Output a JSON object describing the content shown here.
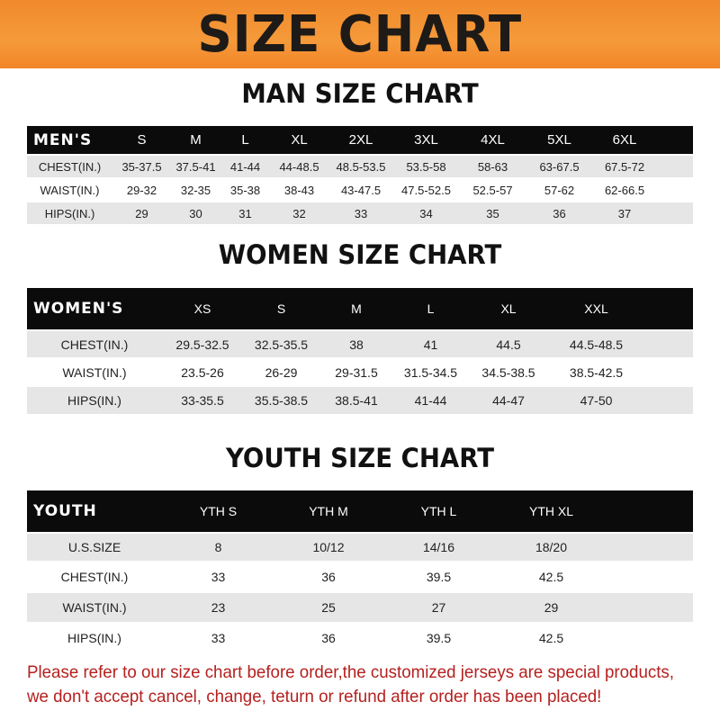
{
  "title": "SIZE CHART",
  "men": {
    "heading": "MAN SIZE CHART",
    "label": "MEN'S",
    "sizes": [
      "S",
      "M",
      "L",
      "XL",
      "2XL",
      "3XL",
      "4XL",
      "5XL",
      "6XL"
    ],
    "rows": [
      {
        "label": "CHEST(IN.)",
        "values": [
          "35-37.5",
          "37.5-41",
          "41-44",
          "44-48.5",
          "48.5-53.5",
          "53.5-58",
          "58-63",
          "63-67.5",
          "67.5-72"
        ]
      },
      {
        "label": "WAIST(IN.)",
        "values": [
          "29-32",
          "32-35",
          "35-38",
          "38-43",
          "43-47.5",
          "47.5-52.5",
          "52.5-57",
          "57-62",
          "62-66.5"
        ]
      },
      {
        "label": "HIPS(IN.)",
        "values": [
          "29",
          "30",
          "31",
          "32",
          "33",
          "34",
          "35",
          "36",
          "37"
        ]
      }
    ]
  },
  "women": {
    "heading": "WOMEN SIZE CHART",
    "label": "WOMEN'S",
    "sizes": [
      "XS",
      "S",
      "M",
      "L",
      "XL",
      "XXL"
    ],
    "rows": [
      {
        "label": "CHEST(IN.)",
        "values": [
          "29.5-32.5",
          "32.5-35.5",
          "38",
          "41",
          "44.5",
          "44.5-48.5"
        ]
      },
      {
        "label": "WAIST(IN.)",
        "values": [
          "23.5-26",
          "26-29",
          "29-31.5",
          "31.5-34.5",
          "34.5-38.5",
          "38.5-42.5"
        ]
      },
      {
        "label": "HIPS(IN.)",
        "values": [
          "33-35.5",
          "35.5-38.5",
          "38.5-41",
          "41-44",
          "44-47",
          "47-50"
        ]
      }
    ]
  },
  "youth": {
    "heading": "YOUTH SIZE CHART",
    "label": "YOUTH",
    "sizes": [
      "YTH S",
      "YTH M",
      "YTH L",
      "YTH XL"
    ],
    "rows": [
      {
        "label": "U.S.SIZE",
        "values": [
          "8",
          "10/12",
          "14/16",
          "18/20"
        ]
      },
      {
        "label": "CHEST(IN.)",
        "values": [
          "33",
          "36",
          "39.5",
          "42.5"
        ]
      },
      {
        "label": "WAIST(IN.)",
        "values": [
          "23",
          "25",
          "27",
          "29"
        ]
      },
      {
        "label": "HIPS(IN.)",
        "values": [
          "33",
          "36",
          "39.5",
          "42.5"
        ]
      }
    ]
  },
  "notice": [
    "Please refer to our size chart before order,the customized jerseys are special products,",
    "we don't accept cancel, change, teturn or refund after order has been placed!"
  ]
}
